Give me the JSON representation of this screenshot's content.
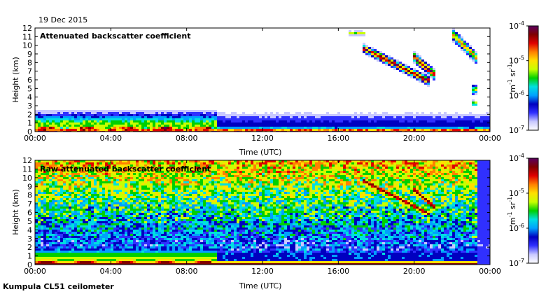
{
  "date": "19 Dec 2015",
  "footer": "Kumpula CL51 ceilometer",
  "chart_data": [
    {
      "type": "heatmap",
      "title": "Attenuated backscatter coefficient",
      "xlabel": "Time (UTC)",
      "ylabel": "Height (km)",
      "xlim": [
        0,
        24
      ],
      "ylim": [
        0,
        12
      ],
      "x_ticks": [
        "00:00",
        "04:00",
        "08:00",
        "12:00",
        "16:00",
        "20:00",
        "00:00"
      ],
      "y_ticks": [
        "0",
        "1",
        "2",
        "3",
        "4",
        "5",
        "6",
        "7",
        "8",
        "9",
        "10",
        "11",
        "12"
      ],
      "colorbar": {
        "scale": "log",
        "range": [
          1e-07,
          0.0001
        ],
        "ticks": [
          {
            "base": "10",
            "exp": "-7"
          },
          {
            "base": "10",
            "exp": "-6"
          },
          {
            "base": "10",
            "exp": "-5"
          },
          {
            "base": "10",
            "exp": "-4"
          }
        ],
        "unit": {
          "a": "m",
          "a_exp": "-1",
          "b": "sr",
          "b_exp": "-1"
        },
        "colors": [
          "#ffffff",
          "#c8c8ff",
          "#3030ff",
          "#0000c0",
          "#00a0ff",
          "#00e0e0",
          "#00d000",
          "#c8ff00",
          "#ffe000",
          "#ff8000",
          "#e00000",
          "#800000",
          "#5a0060"
        ]
      }
    },
    {
      "type": "heatmap",
      "title": "Raw attenuated backscatter coefficient",
      "xlabel": "Time (UTC)",
      "ylabel": "Height (km)",
      "xlim": [
        0,
        24
      ],
      "ylim": [
        0,
        12
      ],
      "x_ticks": [
        "00:00",
        "04:00",
        "08:00",
        "12:00",
        "16:00",
        "20:00",
        "00:00"
      ],
      "y_ticks": [
        "0",
        "1",
        "2",
        "3",
        "4",
        "5",
        "6",
        "7",
        "8",
        "9",
        "10",
        "11",
        "12"
      ],
      "colorbar": {
        "scale": "log",
        "range": [
          1e-07,
          0.0001
        ],
        "ticks": [
          {
            "base": "10",
            "exp": "-7"
          },
          {
            "base": "10",
            "exp": "-6"
          },
          {
            "base": "10",
            "exp": "-5"
          },
          {
            "base": "10",
            "exp": "-4"
          }
        ],
        "unit": {
          "a": "m",
          "a_exp": "-1",
          "b": "sr",
          "b_exp": "-1"
        },
        "colors": [
          "#ffffff",
          "#c8c8ff",
          "#3030ff",
          "#0000c0",
          "#00a0ff",
          "#00e0e0",
          "#00d000",
          "#c8ff00",
          "#ffe000",
          "#ff8000",
          "#e00000",
          "#800000",
          "#5a0060"
        ]
      }
    }
  ]
}
